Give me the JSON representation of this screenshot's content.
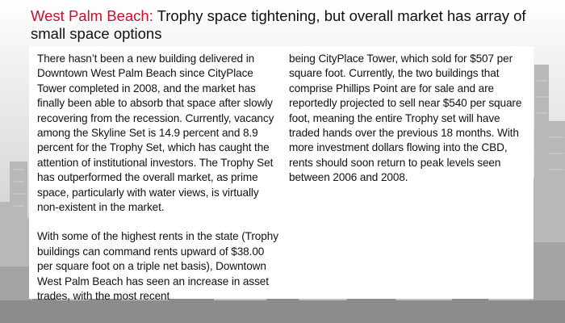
{
  "title": {
    "city": "West Palm Beach:",
    "rest": "Trophy space tightening, but overall market has array of small space options"
  },
  "body": {
    "col1_p1": "There hasn’t been a new building delivered in Downtown West Palm Beach since CityPlace Tower completed in 2008, and the market has finally been able to absorb that space after slowly recovering from the recession. Currently, vacancy among the Skyline Set is 14.9 percent and 8.9 percent for the Trophy Set, which has caught the attention of institutional investors. The Trophy Set has outperformed the overall market, as prime space, particularly with water views, is virtually non-existent in the market.",
    "col1_p2": "With some of the highest rents in the state (Trophy buildings can command rents upward of $38.00 per square foot on a triple net basis), Downtown West Palm Beach has seen an increase in asset trades, with the most recent",
    "col2_p1": "being CityPlace Tower, which sold for $507 per square foot. Currently, the two buildings that comprise Phillips Point are for sale and are reportedly projected to sell near $540 per square foot, meaning the entire Trophy set will have traded hands over the previous 18 months. With more investment dollars flowing into the CBD, rents should soon return to peak levels seen between 2006 and 2008."
  },
  "colors": {
    "accent": "#c8102e",
    "text": "#111111"
  }
}
